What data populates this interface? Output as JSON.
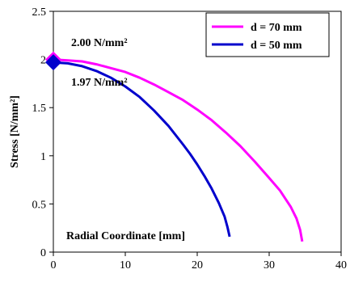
{
  "chart_data": {
    "type": "line",
    "xlabel": "Radial Coordinate [mm]",
    "ylabel": "Stress [N/mm²]",
    "xlim": [
      0,
      40
    ],
    "ylim": [
      0,
      2.5
    ],
    "x_ticks": [
      "0",
      "10",
      "20",
      "30",
      "40"
    ],
    "y_ticks": [
      "0",
      "0.5",
      "1",
      "1.5",
      "2",
      "2.5"
    ],
    "grid": false,
    "legend_position": "top-right",
    "series": [
      {
        "name": "d = 70 mm",
        "color": "#ff00ff",
        "x": [
          0,
          2,
          4,
          6,
          8,
          10,
          12,
          14,
          16,
          18,
          20,
          22,
          24,
          26,
          28,
          30,
          31.5,
          33,
          33.8,
          34.3,
          34.6
        ],
        "y": [
          2.0,
          1.99,
          1.98,
          1.95,
          1.91,
          1.87,
          1.81,
          1.74,
          1.66,
          1.58,
          1.48,
          1.37,
          1.24,
          1.1,
          0.94,
          0.77,
          0.64,
          0.47,
          0.35,
          0.23,
          0.11
        ]
      },
      {
        "name": "d = 50 mm",
        "color": "#0000cc",
        "x": [
          0,
          2,
          4,
          6,
          8,
          10,
          12,
          14,
          16,
          18,
          19,
          20,
          21,
          22,
          23,
          23.8,
          24.2,
          24.5
        ],
        "y": [
          1.97,
          1.96,
          1.93,
          1.88,
          1.81,
          1.72,
          1.61,
          1.47,
          1.31,
          1.12,
          1.02,
          0.91,
          0.79,
          0.66,
          0.51,
          0.37,
          0.26,
          0.16
        ]
      }
    ],
    "annotations": [
      {
        "text": "2.00 N/mm²",
        "x": 0,
        "y": 2.0
      },
      {
        "text": "1.97 N/mm²",
        "x": 0,
        "y": 1.97
      }
    ]
  }
}
